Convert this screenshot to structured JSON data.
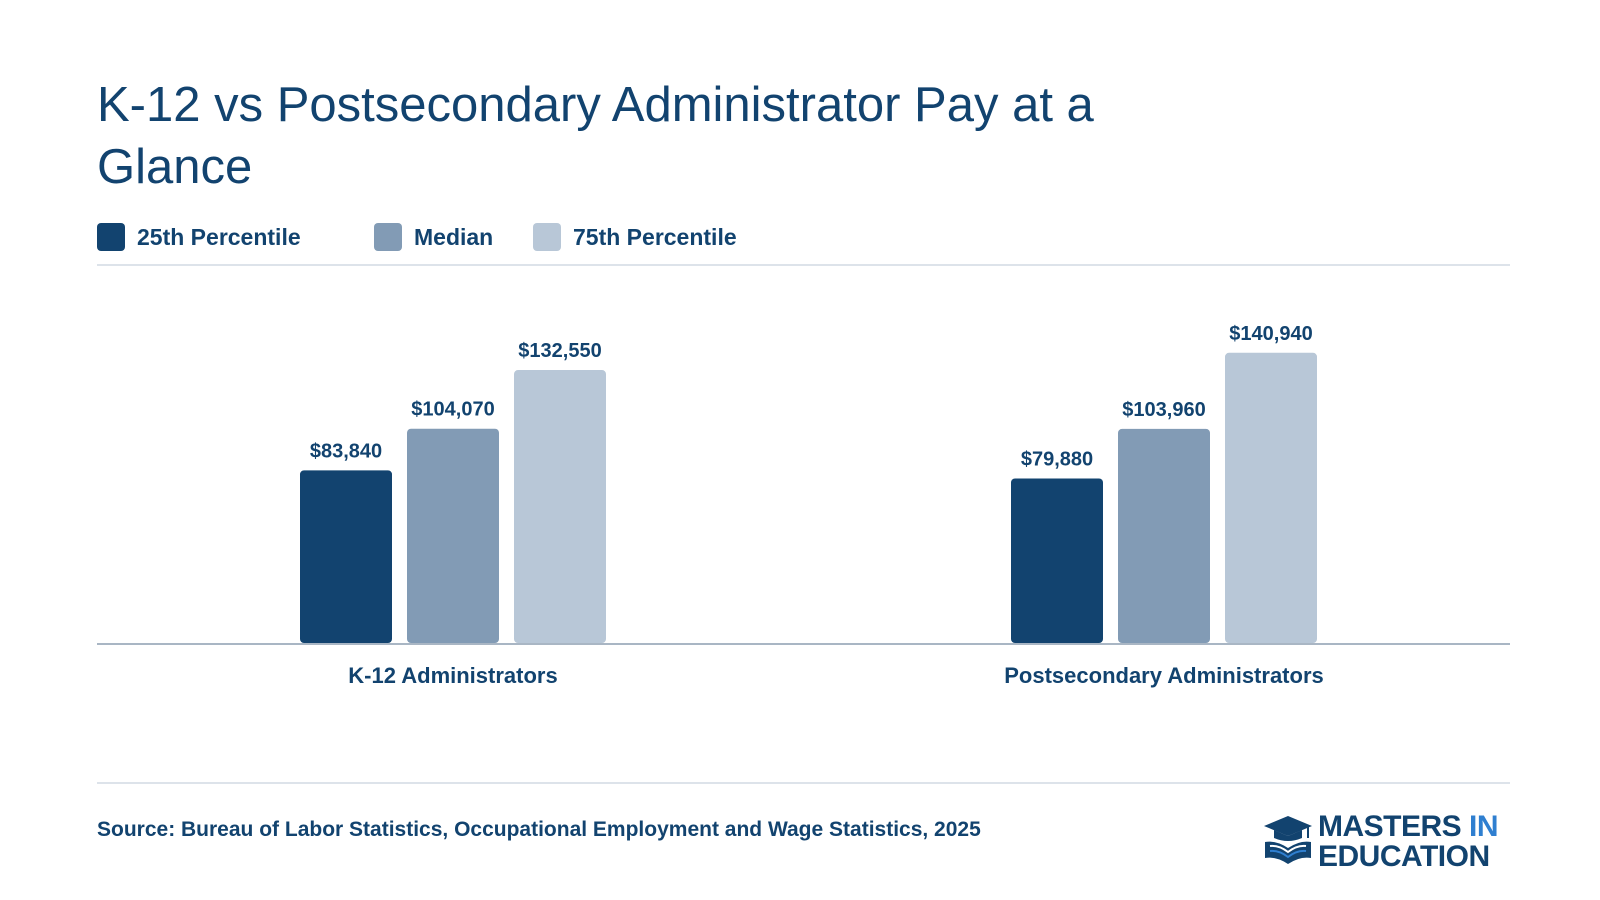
{
  "title": "K-12 vs Postsecondary Administrator Pay at a Glance",
  "legend": [
    {
      "label": "25th Percentile",
      "color": "#12436f"
    },
    {
      "label": "Median",
      "color": "#829bb5"
    },
    {
      "label": "75th Percentile",
      "color": "#b8c7d7"
    }
  ],
  "source": "Source: Bureau of Labor Statistics, Occupational Employment and Wage Statistics, 2025",
  "logo": {
    "line1": "MASTERS",
    "line1_accent": "IN",
    "line2": "EDUCATION",
    "icon": "graduation-cap-book-icon"
  },
  "chart_data": {
    "type": "bar",
    "title": "K-12 vs Postsecondary Administrator Pay at a Glance",
    "categories": [
      "K-12 Administrators",
      "Postsecondary Administrators"
    ],
    "series": [
      {
        "name": "25th Percentile",
        "values": [
          83840,
          79880
        ],
        "labels": [
          "$83,840",
          "$79,880"
        ],
        "color": "#12436f"
      },
      {
        "name": "Median",
        "values": [
          104070,
          103960
        ],
        "labels": [
          "$104,070",
          "$103,960"
        ],
        "color": "#829bb5"
      },
      {
        "name": "75th Percentile",
        "values": [
          132550,
          140940
        ],
        "labels": [
          "$132,550",
          "$140,940"
        ],
        "color": "#b8c7d7"
      }
    ],
    "ylim": [
      0,
      152000
    ],
    "grid": false,
    "legend_position": "top-left",
    "xlabel": "",
    "ylabel": ""
  }
}
